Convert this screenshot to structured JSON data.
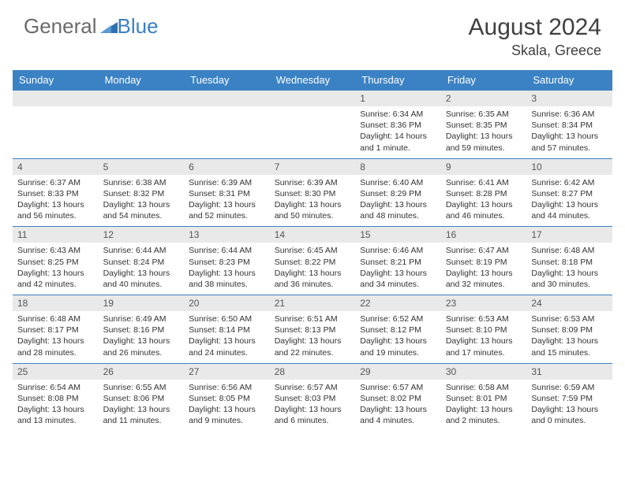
{
  "brand": {
    "part1": "General",
    "part2": "Blue"
  },
  "title": {
    "month": "August 2024",
    "location": "Skala, Greece"
  },
  "colors": {
    "header_bg": "#3b82c4",
    "header_text": "#ffffff",
    "band_bg": "#e9e9e9",
    "border": "#3b82c4",
    "body_text": "#333333",
    "logo_gray": "#6b6b6b",
    "logo_blue": "#3b7fc4"
  },
  "day_headers": [
    "Sunday",
    "Monday",
    "Tuesday",
    "Wednesday",
    "Thursday",
    "Friday",
    "Saturday"
  ],
  "weeks": [
    [
      {
        "empty": true
      },
      {
        "empty": true
      },
      {
        "empty": true
      },
      {
        "empty": true
      },
      {
        "n": "1",
        "sr": "Sunrise: 6:34 AM",
        "ss": "Sunset: 8:36 PM",
        "dl": "Daylight: 14 hours and 1 minute."
      },
      {
        "n": "2",
        "sr": "Sunrise: 6:35 AM",
        "ss": "Sunset: 8:35 PM",
        "dl": "Daylight: 13 hours and 59 minutes."
      },
      {
        "n": "3",
        "sr": "Sunrise: 6:36 AM",
        "ss": "Sunset: 8:34 PM",
        "dl": "Daylight: 13 hours and 57 minutes."
      }
    ],
    [
      {
        "n": "4",
        "sr": "Sunrise: 6:37 AM",
        "ss": "Sunset: 8:33 PM",
        "dl": "Daylight: 13 hours and 56 minutes."
      },
      {
        "n": "5",
        "sr": "Sunrise: 6:38 AM",
        "ss": "Sunset: 8:32 PM",
        "dl": "Daylight: 13 hours and 54 minutes."
      },
      {
        "n": "6",
        "sr": "Sunrise: 6:39 AM",
        "ss": "Sunset: 8:31 PM",
        "dl": "Daylight: 13 hours and 52 minutes."
      },
      {
        "n": "7",
        "sr": "Sunrise: 6:39 AM",
        "ss": "Sunset: 8:30 PM",
        "dl": "Daylight: 13 hours and 50 minutes."
      },
      {
        "n": "8",
        "sr": "Sunrise: 6:40 AM",
        "ss": "Sunset: 8:29 PM",
        "dl": "Daylight: 13 hours and 48 minutes."
      },
      {
        "n": "9",
        "sr": "Sunrise: 6:41 AM",
        "ss": "Sunset: 8:28 PM",
        "dl": "Daylight: 13 hours and 46 minutes."
      },
      {
        "n": "10",
        "sr": "Sunrise: 6:42 AM",
        "ss": "Sunset: 8:27 PM",
        "dl": "Daylight: 13 hours and 44 minutes."
      }
    ],
    [
      {
        "n": "11",
        "sr": "Sunrise: 6:43 AM",
        "ss": "Sunset: 8:25 PM",
        "dl": "Daylight: 13 hours and 42 minutes."
      },
      {
        "n": "12",
        "sr": "Sunrise: 6:44 AM",
        "ss": "Sunset: 8:24 PM",
        "dl": "Daylight: 13 hours and 40 minutes."
      },
      {
        "n": "13",
        "sr": "Sunrise: 6:44 AM",
        "ss": "Sunset: 8:23 PM",
        "dl": "Daylight: 13 hours and 38 minutes."
      },
      {
        "n": "14",
        "sr": "Sunrise: 6:45 AM",
        "ss": "Sunset: 8:22 PM",
        "dl": "Daylight: 13 hours and 36 minutes."
      },
      {
        "n": "15",
        "sr": "Sunrise: 6:46 AM",
        "ss": "Sunset: 8:21 PM",
        "dl": "Daylight: 13 hours and 34 minutes."
      },
      {
        "n": "16",
        "sr": "Sunrise: 6:47 AM",
        "ss": "Sunset: 8:19 PM",
        "dl": "Daylight: 13 hours and 32 minutes."
      },
      {
        "n": "17",
        "sr": "Sunrise: 6:48 AM",
        "ss": "Sunset: 8:18 PM",
        "dl": "Daylight: 13 hours and 30 minutes."
      }
    ],
    [
      {
        "n": "18",
        "sr": "Sunrise: 6:48 AM",
        "ss": "Sunset: 8:17 PM",
        "dl": "Daylight: 13 hours and 28 minutes."
      },
      {
        "n": "19",
        "sr": "Sunrise: 6:49 AM",
        "ss": "Sunset: 8:16 PM",
        "dl": "Daylight: 13 hours and 26 minutes."
      },
      {
        "n": "20",
        "sr": "Sunrise: 6:50 AM",
        "ss": "Sunset: 8:14 PM",
        "dl": "Daylight: 13 hours and 24 minutes."
      },
      {
        "n": "21",
        "sr": "Sunrise: 6:51 AM",
        "ss": "Sunset: 8:13 PM",
        "dl": "Daylight: 13 hours and 22 minutes."
      },
      {
        "n": "22",
        "sr": "Sunrise: 6:52 AM",
        "ss": "Sunset: 8:12 PM",
        "dl": "Daylight: 13 hours and 19 minutes."
      },
      {
        "n": "23",
        "sr": "Sunrise: 6:53 AM",
        "ss": "Sunset: 8:10 PM",
        "dl": "Daylight: 13 hours and 17 minutes."
      },
      {
        "n": "24",
        "sr": "Sunrise: 6:53 AM",
        "ss": "Sunset: 8:09 PM",
        "dl": "Daylight: 13 hours and 15 minutes."
      }
    ],
    [
      {
        "n": "25",
        "sr": "Sunrise: 6:54 AM",
        "ss": "Sunset: 8:08 PM",
        "dl": "Daylight: 13 hours and 13 minutes."
      },
      {
        "n": "26",
        "sr": "Sunrise: 6:55 AM",
        "ss": "Sunset: 8:06 PM",
        "dl": "Daylight: 13 hours and 11 minutes."
      },
      {
        "n": "27",
        "sr": "Sunrise: 6:56 AM",
        "ss": "Sunset: 8:05 PM",
        "dl": "Daylight: 13 hours and 9 minutes."
      },
      {
        "n": "28",
        "sr": "Sunrise: 6:57 AM",
        "ss": "Sunset: 8:03 PM",
        "dl": "Daylight: 13 hours and 6 minutes."
      },
      {
        "n": "29",
        "sr": "Sunrise: 6:57 AM",
        "ss": "Sunset: 8:02 PM",
        "dl": "Daylight: 13 hours and 4 minutes."
      },
      {
        "n": "30",
        "sr": "Sunrise: 6:58 AM",
        "ss": "Sunset: 8:01 PM",
        "dl": "Daylight: 13 hours and 2 minutes."
      },
      {
        "n": "31",
        "sr": "Sunrise: 6:59 AM",
        "ss": "Sunset: 7:59 PM",
        "dl": "Daylight: 13 hours and 0 minutes."
      }
    ]
  ]
}
